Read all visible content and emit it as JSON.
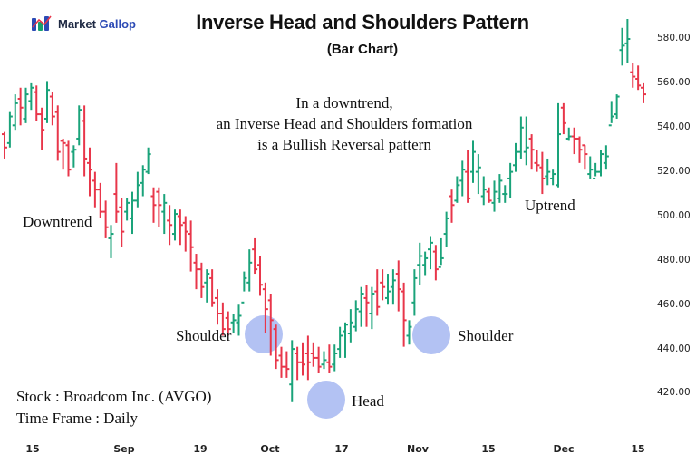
{
  "brand": {
    "name_part1": "Market",
    "name_part2": "Gallop"
  },
  "chart_data": {
    "type": "ohlc-bar",
    "title": "Inverse Head and Shoulders Pattern",
    "subtitle": "(Bar Chart)",
    "description": [
      "In a downtrend,",
      "an Inverse Head and Shoulders formation",
      "is a Bullish Reversal pattern"
    ],
    "stock": "Stock : Broadcom Inc. (AVGO)",
    "timeframe": "Time Frame : Daily",
    "annotations": {
      "downtrend": "Downtrend",
      "left_shoulder": "Shoulder",
      "head": "Head",
      "right_shoulder": "Shoulder",
      "uptrend": "Uptrend"
    },
    "ylim": [
      408,
      590
    ],
    "yticks": [
      "580.00",
      "560.00",
      "540.00",
      "520.00",
      "500.00",
      "480.00",
      "460.00",
      "440.00",
      "420.00"
    ],
    "xticks": [
      "15",
      "Sep",
      "19",
      "Oct",
      "17",
      "Nov",
      "15",
      "Dec",
      "15"
    ],
    "colors": {
      "up": "#1aa37a",
      "down": "#e8364a",
      "marker": "#9aaeef"
    },
    "bars": [
      [
        537,
        538,
        526,
        531
      ],
      [
        533,
        547,
        531,
        545
      ],
      [
        541,
        555,
        539,
        551
      ],
      [
        553,
        558,
        541,
        549
      ],
      [
        544,
        558,
        542,
        555
      ],
      [
        552,
        560,
        548,
        558
      ],
      [
        556,
        559,
        543,
        546
      ],
      [
        546,
        549,
        530,
        539
      ],
      [
        544,
        561,
        542,
        557
      ],
      [
        554,
        556,
        541,
        545
      ],
      [
        547,
        550,
        525,
        529
      ],
      [
        534,
        535,
        521,
        533
      ],
      [
        532,
        534,
        518,
        521
      ],
      [
        529,
        532,
        522,
        530
      ],
      [
        535,
        550,
        532,
        548
      ],
      [
        543,
        550,
        518,
        526
      ],
      [
        524,
        531,
        509,
        521
      ],
      [
        516,
        520,
        504,
        512
      ],
      [
        512,
        515,
        499,
        502
      ],
      [
        502,
        507,
        490,
        495
      ],
      [
        490,
        496,
        481,
        492
      ],
      [
        510,
        524,
        497,
        502
      ],
      [
        504,
        508,
        486,
        493
      ],
      [
        502,
        508,
        498,
        506
      ],
      [
        499,
        511,
        492,
        507
      ],
      [
        507,
        520,
        504,
        514
      ],
      [
        515,
        523,
        509,
        521
      ],
      [
        520,
        531,
        519,
        528
      ],
      [
        509,
        513,
        497,
        505
      ],
      [
        511,
        513,
        495,
        505
      ],
      [
        502,
        510,
        492,
        506
      ],
      [
        498,
        505,
        487,
        496
      ],
      [
        492,
        503,
        489,
        501
      ],
      [
        500,
        503,
        487,
        496
      ],
      [
        497,
        500,
        484,
        493
      ],
      [
        492,
        498,
        475,
        486
      ],
      [
        479,
        483,
        467,
        476
      ],
      [
        476,
        479,
        463,
        468
      ],
      [
        470,
        476,
        461,
        474
      ],
      [
        472,
        476,
        459,
        461
      ],
      [
        463,
        467,
        451,
        456
      ],
      [
        456,
        461,
        446,
        449
      ],
      [
        454,
        457,
        446,
        449
      ],
      [
        452,
        456,
        447,
        453
      ],
      [
        452,
        460,
        446,
        455
      ],
      [
        461,
        475,
        466,
        472
      ],
      [
        470,
        485,
        466,
        479
      ],
      [
        485,
        490,
        474,
        476
      ],
      [
        478,
        482,
        464,
        469
      ],
      [
        467,
        470,
        447,
        458
      ],
      [
        462,
        465,
        437,
        453
      ],
      [
        449,
        451,
        431,
        435
      ],
      [
        437,
        441,
        427,
        432
      ],
      [
        432,
        439,
        427,
        431
      ],
      [
        424,
        444,
        416,
        440
      ],
      [
        438,
        441,
        426,
        434
      ],
      [
        434,
        443,
        428,
        433
      ],
      [
        438,
        446,
        426,
        434
      ],
      [
        438,
        443,
        432,
        436
      ],
      [
        436,
        441,
        429,
        432
      ],
      [
        433,
        439,
        431,
        435
      ],
      [
        434,
        442,
        429,
        432
      ],
      [
        433,
        442,
        430,
        438
      ],
      [
        440,
        450,
        436,
        446
      ],
      [
        448,
        452,
        436,
        451
      ],
      [
        447,
        458,
        443,
        452
      ],
      [
        450,
        462,
        448,
        458
      ],
      [
        457,
        468,
        450,
        465
      ],
      [
        463,
        469,
        450,
        461
      ],
      [
        456,
        468,
        449,
        465
      ],
      [
        466,
        476,
        455,
        459
      ],
      [
        470,
        476,
        462,
        468
      ],
      [
        463,
        474,
        460,
        466
      ],
      [
        468,
        476,
        460,
        471
      ],
      [
        474,
        480,
        457,
        467
      ],
      [
        466,
        470,
        441,
        453
      ],
      [
        446,
        453,
        442,
        450
      ],
      [
        461,
        476,
        455,
        472
      ],
      [
        478,
        488,
        469,
        482
      ],
      [
        478,
        484,
        473,
        481
      ],
      [
        485,
        491,
        476,
        488
      ],
      [
        484,
        487,
        471,
        476
      ],
      [
        477,
        490,
        478,
        481
      ],
      [
        492,
        502,
        486,
        499
      ],
      [
        509,
        512,
        497,
        505
      ],
      [
        507,
        518,
        506,
        514
      ],
      [
        516,
        525,
        509,
        521
      ],
      [
        520,
        530,
        506,
        508
      ],
      [
        520,
        534,
        515,
        529
      ],
      [
        520,
        528,
        510,
        522
      ],
      [
        509,
        518,
        505,
        512
      ],
      [
        511,
        513,
        506,
        507
      ],
      [
        506,
        516,
        502,
        511
      ],
      [
        508,
        519,
        506,
        516
      ],
      [
        510,
        514,
        506,
        510
      ],
      [
        517,
        524,
        508,
        520
      ],
      [
        523,
        533,
        520,
        529
      ],
      [
        529,
        545,
        526,
        540
      ],
      [
        529,
        545,
        523,
        531
      ],
      [
        535,
        537,
        521,
        530
      ],
      [
        524,
        530,
        520,
        523
      ],
      [
        522,
        529,
        510,
        517
      ],
      [
        518,
        526,
        514,
        520
      ],
      [
        517,
        521,
        514,
        519
      ],
      [
        514,
        551,
        513,
        537
      ],
      [
        549,
        551,
        537,
        542
      ],
      [
        535,
        540,
        534,
        536
      ],
      [
        536,
        540,
        528,
        535
      ],
      [
        535,
        536,
        524,
        530
      ],
      [
        532,
        532,
        521,
        528
      ],
      [
        519,
        527,
        517,
        521
      ],
      [
        517,
        524,
        518,
        520
      ],
      [
        520,
        530,
        518,
        528
      ],
      [
        524,
        532,
        521,
        527
      ],
      [
        541,
        552,
        542,
        545
      ],
      [
        546,
        555,
        544,
        554
      ],
      [
        575,
        585,
        568,
        577
      ],
      [
        578,
        589,
        569,
        580
      ],
      [
        565,
        569,
        558,
        563
      ],
      [
        562,
        568,
        557,
        559
      ],
      [
        558,
        560,
        551,
        555
      ]
    ]
  }
}
